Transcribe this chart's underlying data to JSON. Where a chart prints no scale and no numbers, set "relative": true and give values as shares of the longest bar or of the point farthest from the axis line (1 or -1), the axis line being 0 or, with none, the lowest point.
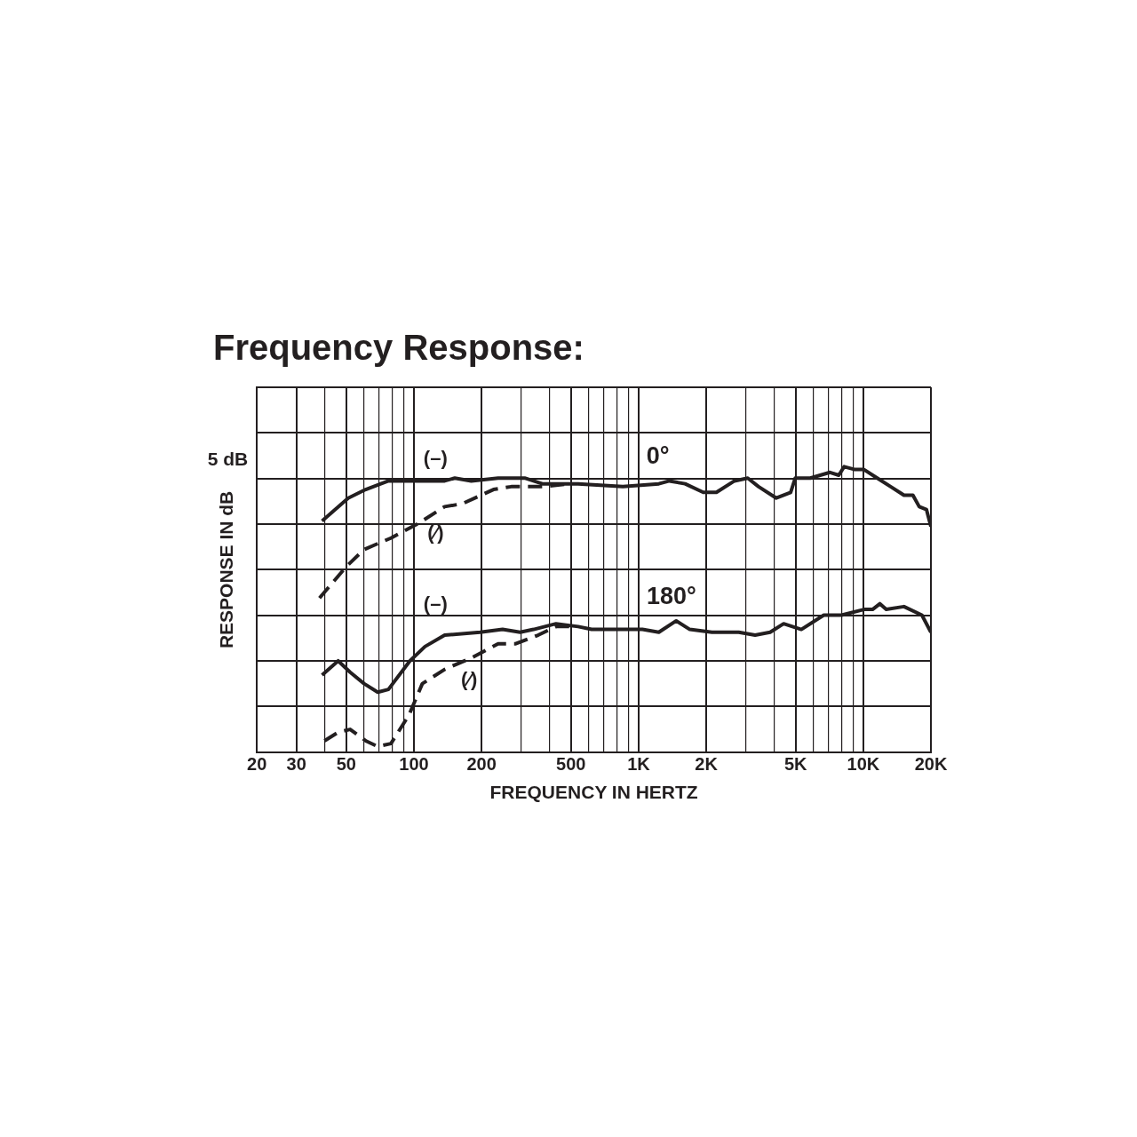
{
  "chart_data": {
    "type": "line",
    "title": "Frequency Response:",
    "xlabel": "FREQUENCY IN HERTZ",
    "ylabel": "RESPONSE IN dB",
    "relative": true,
    "log": "x",
    "grid": true,
    "legend": false,
    "marker": "none",
    "xlim": [
      20,
      20000
    ],
    "xticks": [
      20,
      30,
      {
        "value": 40,
        "label": null
      },
      50,
      {
        "value": 60,
        "label": null
      },
      {
        "value": 70,
        "label": null
      },
      {
        "value": 80,
        "label": null
      },
      {
        "value": 90,
        "label": null
      },
      100,
      200,
      {
        "value": 300,
        "label": null
      },
      {
        "value": 400,
        "label": null
      },
      500,
      {
        "value": 600,
        "label": null
      },
      {
        "value": 700,
        "label": null
      },
      {
        "value": 800,
        "label": null
      },
      {
        "value": 900,
        "label": null
      },
      {
        "value": 1000,
        "label": "1K"
      },
      {
        "value": 2000,
        "label": "2K"
      },
      {
        "value": 3000,
        "label": null
      },
      {
        "value": 4000,
        "label": null
      },
      {
        "value": 5000,
        "label": "5K"
      },
      {
        "value": 6000,
        "label": null
      },
      {
        "value": 7000,
        "label": null
      },
      {
        "value": 8000,
        "label": null
      },
      {
        "value": 9000,
        "label": null
      },
      {
        "value": 10000,
        "label": "10K"
      },
      {
        "value": 20000,
        "label": "20K"
      }
    ],
    "series": [
      {
        "name": "(–)",
        "color": "#231f20",
        "line_style": "solid",
        "x": [
          39,
          51,
          61,
          77,
          95,
          137,
          152,
          180,
          237,
          279,
          311,
          373,
          538,
          851,
          1230,
          1370,
          1610,
          1940,
          2220,
          2670,
          3060,
          3420,
          4100,
          4750,
          4980,
          5810,
          7110,
          7780,
          8220,
          9180,
          10070,
          11540,
          13240,
          15170,
          16630,
          17740,
          19100,
          20000
        ],
        "values": [
          0.81,
          0.89,
          0.92,
          0.95,
          0.95,
          0.95,
          0.96,
          0.95,
          0.96,
          0.96,
          0.96,
          0.94,
          0.94,
          0.93,
          0.94,
          0.95,
          0.94,
          0.91,
          0.91,
          0.95,
          0.96,
          0.93,
          0.89,
          0.91,
          0.96,
          0.96,
          0.98,
          0.97,
          1,
          0.99,
          0.99,
          0.96,
          0.93,
          0.9,
          0.9,
          0.86,
          0.85,
          0.79
        ]
      },
      {
        "name": "(⁄)",
        "color": "#231f20",
        "line_style": "dashed",
        "x": [
          38,
          50,
          60,
          79,
          104,
          137,
          164,
          226,
          271,
          373,
          492
        ],
        "values": [
          0.54,
          0.65,
          0.71,
          0.75,
          0.8,
          0.86,
          0.87,
          0.92,
          0.93,
          0.93,
          0.94
        ]
      },
      {
        "name": "(–)",
        "color": "#231f20",
        "line_style": "solid",
        "x": [
          39,
          46,
          52,
          60,
          69,
          77,
          96,
          112,
          137,
          197,
          248,
          297,
          341,
          429,
          538,
          618,
          851,
          1040,
          1230,
          1470,
          1690,
          2120,
          2790,
          3300,
          3850,
          4420,
          5300,
          6670,
          8000,
          10070,
          11000,
          11860,
          12650,
          15170,
          18240,
          20000
        ],
        "values": [
          0.27,
          0.32,
          0.28,
          0.24,
          0.21,
          0.22,
          0.32,
          0.37,
          0.41,
          0.42,
          0.43,
          0.42,
          0.43,
          0.45,
          0.44,
          0.43,
          0.43,
          0.43,
          0.42,
          0.46,
          0.43,
          0.42,
          0.42,
          0.41,
          0.42,
          0.45,
          0.43,
          0.48,
          0.48,
          0.5,
          0.5,
          0.52,
          0.5,
          0.51,
          0.48,
          0.42
        ]
      },
      {
        "name": "(⁄)",
        "color": "#231f20",
        "line_style": "dashed",
        "x": [
          40,
          46,
          52,
          61,
          69,
          79,
          95,
          109,
          137,
          180,
          237,
          284,
          357,
          429,
          492
        ],
        "values": [
          0.04,
          0.07,
          0.08,
          0.04,
          0.02,
          0.03,
          0.13,
          0.24,
          0.29,
          0.33,
          0.38,
          0.38,
          0.41,
          0.44,
          0.44
        ]
      }
    ],
    "annotations": [
      "5 dB",
      "0°",
      "180°"
    ]
  }
}
